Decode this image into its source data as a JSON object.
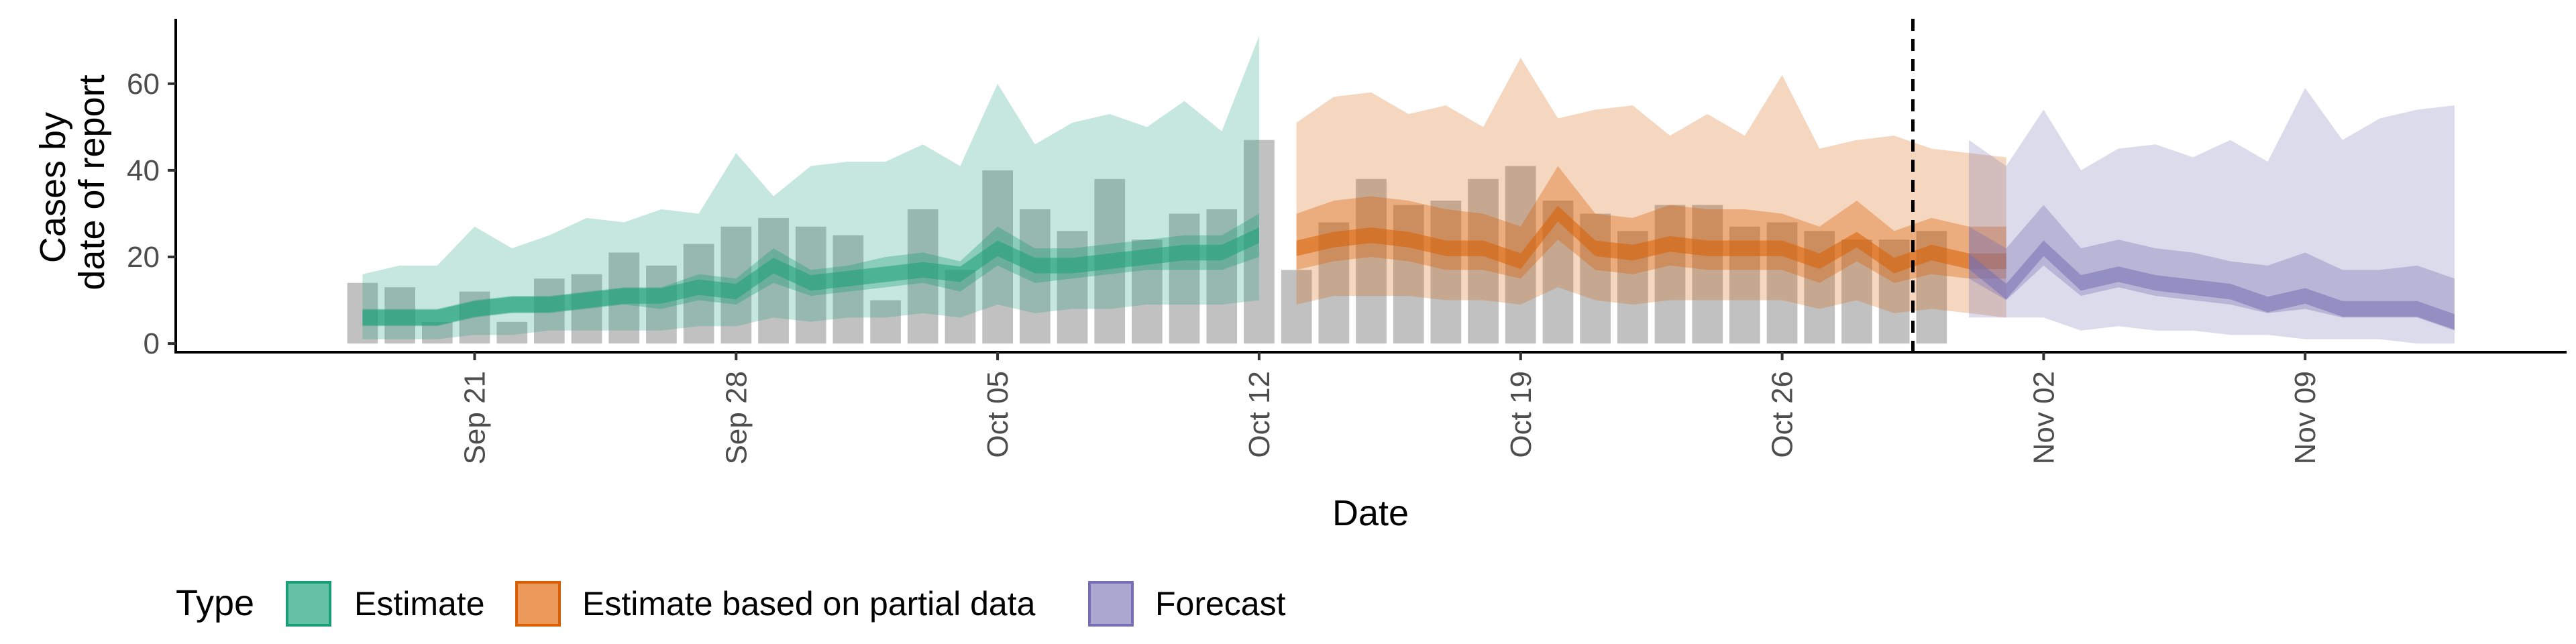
{
  "chart_data": {
    "type": "area",
    "xlabel": "Date",
    "ylabel": [
      "Cases by",
      "date of report"
    ],
    "ylim": [
      -2,
      75
    ],
    "y_ticks": [
      0,
      20,
      40,
      60
    ],
    "x_ticks": [
      {
        "date": "2020-09-21",
        "label": "Sep 21"
      },
      {
        "date": "2020-09-28",
        "label": "Sep 28"
      },
      {
        "date": "2020-10-05",
        "label": "Oct 05"
      },
      {
        "date": "2020-10-12",
        "label": "Oct 12"
      },
      {
        "date": "2020-10-19",
        "label": "Oct 19"
      },
      {
        "date": "2020-10-26",
        "label": "Oct 26"
      },
      {
        "date": "2020-11-02",
        "label": "Nov 02"
      },
      {
        "date": "2020-11-09",
        "label": "Nov 09"
      }
    ],
    "x_range": [
      "2020-09-13",
      "2020-11-16"
    ],
    "forecast_line_date": "2020-10-30",
    "grid": false,
    "legend_position": "bottom",
    "legend": {
      "title": "Type",
      "entries": [
        {
          "label": "Estimate",
          "fill": "#66c2a5",
          "stroke": "#1b9e77"
        },
        {
          "label": "Estimate based on partial data",
          "fill": "#ec9a5c",
          "stroke": "#d95f02"
        },
        {
          "label": "Forecast",
          "fill": "#aaa8d1",
          "stroke": "#7570b3"
        }
      ]
    },
    "colors": {
      "Estimate": "#1b9e77",
      "Estimate based on partial data": "#d95f02",
      "Forecast": "#7570b3",
      "bars": "#a6a6a6"
    },
    "bars": {
      "start_date": "2020-09-18",
      "values": [
        14,
        13,
        5,
        12,
        5,
        15,
        16,
        21,
        18,
        23,
        27,
        29,
        27,
        25,
        10,
        31,
        17,
        40,
        31,
        26,
        38,
        24,
        30,
        31,
        47,
        17,
        28,
        38,
        32,
        33,
        38,
        41,
        33,
        30,
        26,
        32,
        32,
        27,
        28,
        26,
        24,
        24,
        26
      ]
    },
    "series": [
      {
        "name": "Estimate",
        "start_date": "2020-09-18",
        "median": [
          6,
          6,
          6,
          8,
          9,
          9,
          10,
          11,
          11,
          13,
          12,
          18,
          14,
          15,
          16,
          17,
          16,
          22,
          18,
          18,
          19,
          20,
          21,
          21,
          25
        ],
        "lower50": [
          4,
          4,
          4,
          6,
          7,
          7,
          8,
          9,
          8,
          10,
          9,
          14,
          11,
          12,
          13,
          14,
          12,
          18,
          14,
          15,
          16,
          17,
          17,
          17,
          20
        ],
        "upper50": [
          8,
          8,
          8,
          10,
          11,
          11,
          12,
          13,
          13,
          16,
          15,
          22,
          17,
          18,
          20,
          21,
          19,
          27,
          22,
          22,
          23,
          24,
          25,
          25,
          30
        ],
        "lower90": [
          1,
          1,
          1,
          2,
          2,
          3,
          3,
          3,
          3,
          4,
          4,
          6,
          5,
          6,
          6,
          7,
          6,
          9,
          7,
          8,
          8,
          9,
          9,
          9,
          10
        ],
        "upper90": [
          16,
          18,
          18,
          27,
          22,
          25,
          29,
          28,
          31,
          30,
          44,
          34,
          41,
          42,
          42,
          46,
          41,
          60,
          46,
          51,
          53,
          50,
          56,
          49,
          71
        ]
      },
      {
        "name": "Estimate based on partial data",
        "start_date": "2020-10-13",
        "median": [
          22,
          24,
          25,
          24,
          22,
          22,
          19,
          30,
          22,
          21,
          23,
          22,
          22,
          22,
          19,
          24,
          18,
          21,
          19,
          19
        ],
        "lower50": [
          17,
          19,
          20,
          19,
          17,
          17,
          15,
          24,
          17,
          16,
          18,
          17,
          17,
          17,
          14,
          19,
          14,
          16,
          15,
          15
        ],
        "upper50": [
          30,
          33,
          34,
          33,
          31,
          30,
          27,
          41,
          30,
          29,
          32,
          31,
          31,
          30,
          27,
          33,
          26,
          29,
          27,
          27
        ],
        "lower90": [
          9,
          11,
          11,
          11,
          10,
          10,
          9,
          13,
          10,
          9,
          10,
          10,
          10,
          10,
          8,
          10,
          7,
          8,
          7,
          6
        ],
        "upper90": [
          51,
          57,
          58,
          53,
          55,
          50,
          66,
          52,
          54,
          55,
          48,
          53,
          48,
          62,
          45,
          47,
          48,
          45,
          44,
          43
        ]
      },
      {
        "name": "Forecast",
        "start_date": "2020-10-31",
        "median": [
          19,
          12,
          22,
          14,
          16,
          14,
          13,
          12,
          9,
          11,
          8,
          8,
          8,
          5
        ],
        "lower50": [
          15,
          10,
          18,
          11,
          13,
          11,
          10,
          9,
          7,
          8,
          6,
          6,
          6,
          3
        ],
        "upper50": [
          27,
          22,
          32,
          22,
          24,
          22,
          21,
          19,
          18,
          21,
          17,
          17,
          18,
          15
        ],
        "lower90": [
          6,
          6,
          6,
          3,
          4,
          3,
          3,
          2,
          2,
          1,
          1,
          1,
          0,
          0
        ],
        "upper90": [
          47,
          41,
          54,
          40,
          45,
          46,
          43,
          47,
          42,
          59,
          47,
          52,
          54,
          55
        ]
      }
    ]
  }
}
